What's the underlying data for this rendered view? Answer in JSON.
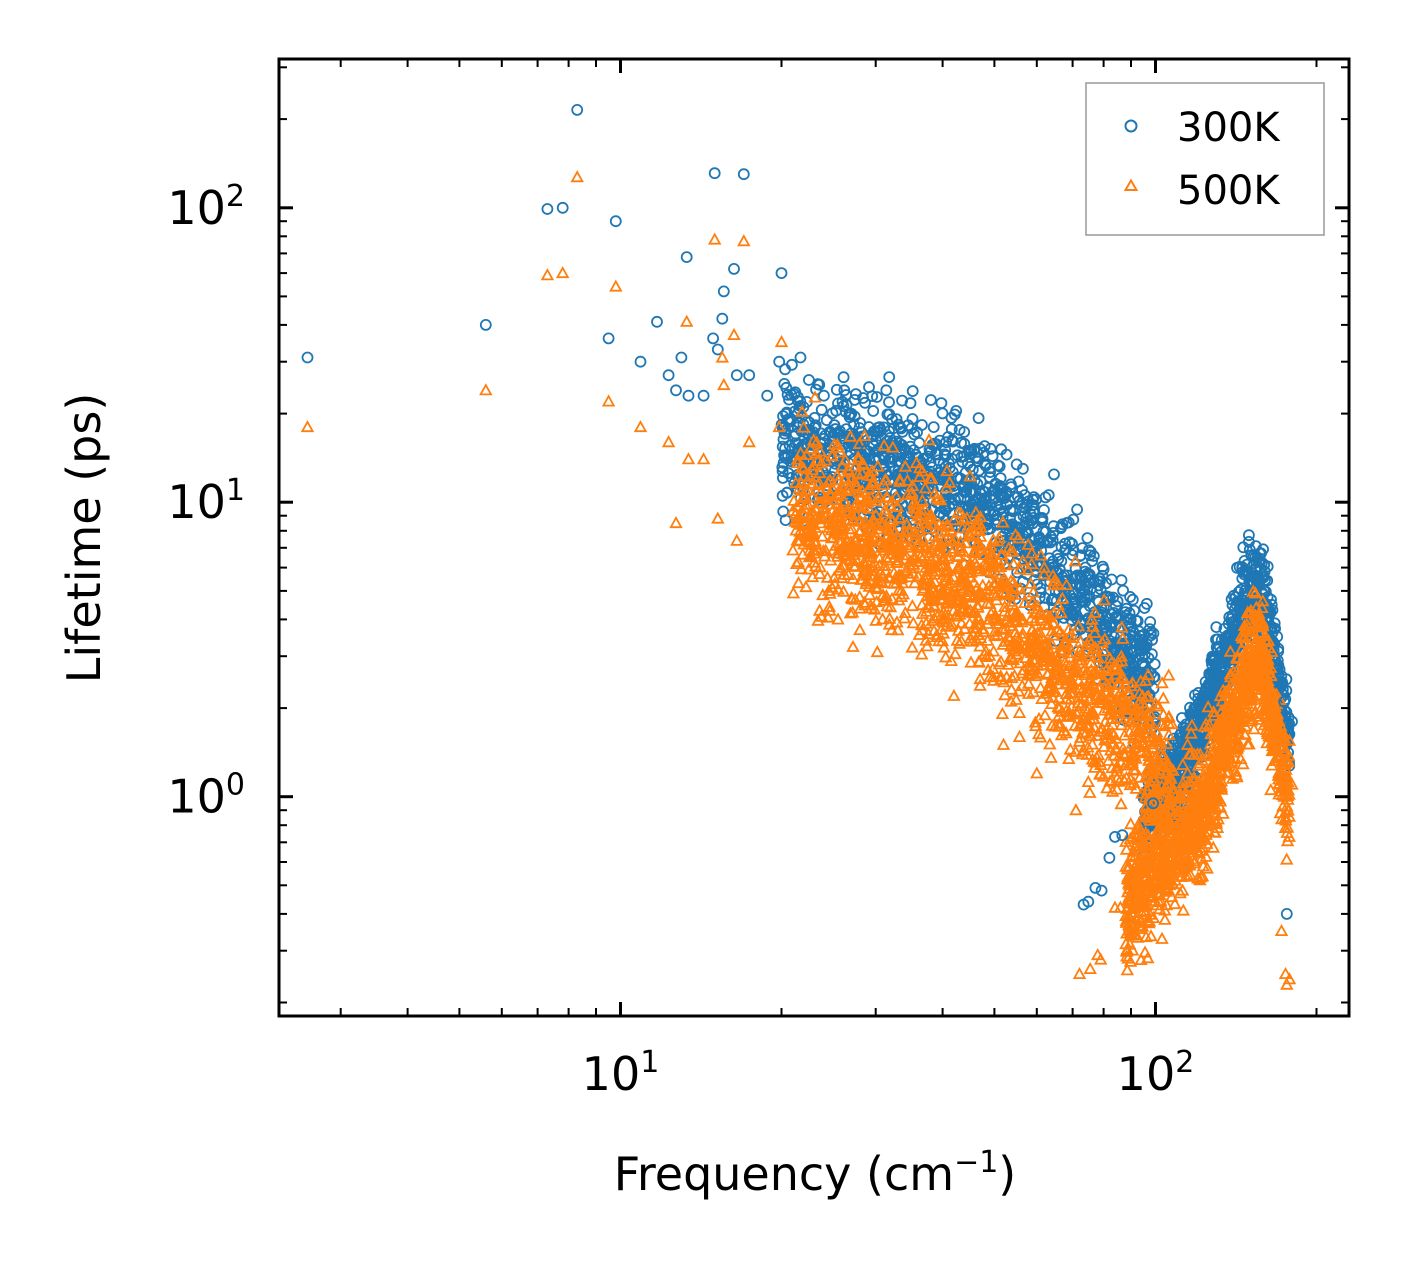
{
  "chart_data": {
    "type": "scatter",
    "title": "",
    "xlabel": "Frequency (cm",
    "xlabel_sup": "−1",
    "xlabel_tail": ")",
    "ylabel": "Lifetime (ps)",
    "xscale": "log",
    "yscale": "log",
    "xlim": [
      2.3,
      230
    ],
    "ylim": [
      0.18,
      320
    ],
    "x_ticks": [
      {
        "base": "10",
        "exp": "1",
        "value": 10
      },
      {
        "base": "10",
        "exp": "2",
        "value": 100
      }
    ],
    "y_ticks": [
      {
        "base": "10",
        "exp": "0",
        "value": 1
      },
      {
        "base": "10",
        "exp": "1",
        "value": 10
      },
      {
        "base": "10",
        "exp": "2",
        "value": 100
      }
    ],
    "legend_position": "top-right",
    "series": [
      {
        "name": "300K",
        "color": "#1f77b4",
        "marker": "circle",
        "points": [
          [
            2.6,
            31
          ],
          [
            5.6,
            40
          ],
          [
            7.3,
            99
          ],
          [
            7.8,
            100
          ],
          [
            8.3,
            215
          ],
          [
            9.5,
            36
          ],
          [
            9.8,
            90
          ],
          [
            10.9,
            30
          ],
          [
            11.7,
            41
          ],
          [
            12.3,
            27
          ],
          [
            12.7,
            24
          ],
          [
            13.0,
            31
          ],
          [
            13.3,
            68
          ],
          [
            13.4,
            23
          ],
          [
            14.3,
            23
          ],
          [
            14.9,
            36
          ],
          [
            15.0,
            131
          ],
          [
            15.2,
            33
          ],
          [
            15.5,
            42
          ],
          [
            15.6,
            52
          ],
          [
            16.3,
            62
          ],
          [
            16.5,
            27
          ],
          [
            17.0,
            130
          ],
          [
            17.4,
            27
          ],
          [
            18.8,
            23
          ],
          [
            19.8,
            30
          ],
          [
            20.0,
            60
          ],
          [
            21.7,
            31
          ],
          [
            22.5,
            26
          ],
          [
            24.0,
            23
          ],
          [
            26.2,
            24
          ],
          [
            27.0,
            20
          ],
          [
            28.8,
            15
          ],
          [
            30.5,
            18
          ],
          [
            31.4,
            24
          ],
          [
            33.3,
            18
          ],
          [
            35.4,
            17
          ],
          [
            38.5,
            18
          ],
          [
            45.8,
            15
          ],
          [
            56.3,
            11
          ],
          [
            68.2,
            8.5
          ],
          [
            73.4,
            0.43
          ],
          [
            74.9,
            0.44
          ],
          [
            77.2,
            0.49
          ],
          [
            79.3,
            0.48
          ],
          [
            82.0,
            0.62
          ],
          [
            84.0,
            0.73
          ],
          [
            86.7,
            0.74
          ],
          [
            99.0,
            0.95
          ],
          [
            133.0,
            3.4
          ],
          [
            150.1,
            6.9
          ],
          [
            151.0,
            6.6
          ],
          [
            172.0,
            2.4
          ],
          [
            174.0,
            2.1
          ],
          [
            176.0,
            0.4
          ],
          [
            180.0,
            1.8
          ]
        ]
      },
      {
        "name": "500K",
        "color": "#ff7f0e",
        "marker": "triangle",
        "points": [
          [
            2.6,
            18
          ],
          [
            5.6,
            24
          ],
          [
            7.3,
            59
          ],
          [
            7.8,
            60
          ],
          [
            8.3,
            127
          ],
          [
            9.5,
            22
          ],
          [
            9.8,
            54
          ],
          [
            10.9,
            18
          ],
          [
            12.3,
            16
          ],
          [
            12.7,
            8.5
          ],
          [
            13.3,
            41
          ],
          [
            13.4,
            14
          ],
          [
            14.3,
            14
          ],
          [
            15.0,
            78
          ],
          [
            15.2,
            8.8
          ],
          [
            15.5,
            31
          ],
          [
            15.6,
            25
          ],
          [
            16.3,
            37
          ],
          [
            16.5,
            7.4
          ],
          [
            17.0,
            77
          ],
          [
            17.4,
            16
          ],
          [
            19.8,
            18
          ],
          [
            20.0,
            35
          ],
          [
            21.7,
            10
          ],
          [
            24.5,
            5.0
          ],
          [
            25.5,
            4.0
          ],
          [
            27.0,
            12
          ],
          [
            30.2,
            3.1
          ],
          [
            33.5,
            5
          ],
          [
            42.0,
            2.2
          ],
          [
            52.0,
            1.5
          ],
          [
            60.0,
            1.2
          ],
          [
            71.0,
            0.9
          ],
          [
            72.1,
            0.25
          ],
          [
            75.5,
            0.26
          ],
          [
            78.0,
            0.29
          ],
          [
            79.0,
            0.28
          ],
          [
            84.0,
            0.42
          ],
          [
            86.0,
            0.42
          ],
          [
            93.0,
            0.5
          ],
          [
            100.0,
            0.6
          ],
          [
            112.0,
            0.67
          ],
          [
            150.0,
            4.2
          ],
          [
            152.0,
            3.8
          ],
          [
            160.0,
            2.9
          ],
          [
            168.0,
            1.8
          ],
          [
            172.0,
            0.35
          ],
          [
            175.0,
            0.25
          ],
          [
            176.0,
            0.23
          ],
          [
            178.0,
            0.24
          ],
          [
            180.0,
            1.1
          ]
        ]
      }
    ]
  }
}
